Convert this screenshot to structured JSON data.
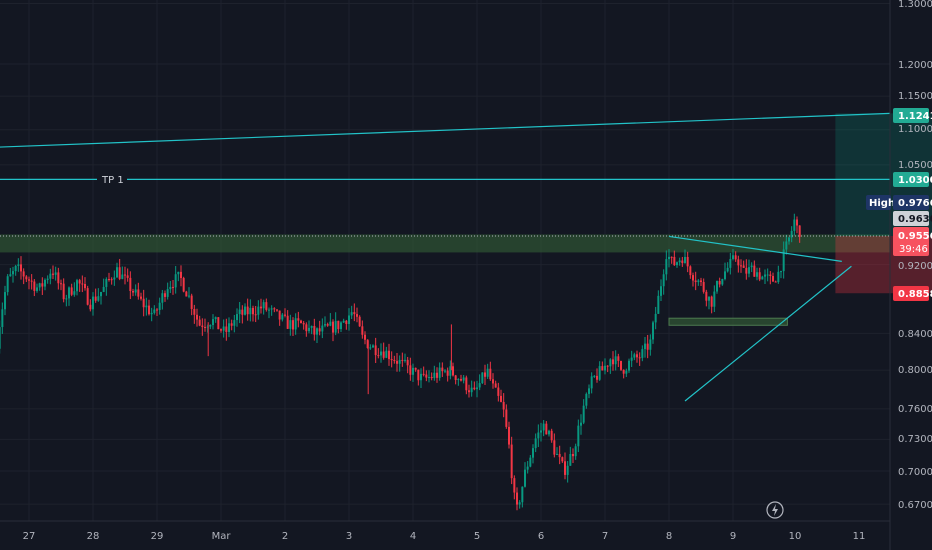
{
  "chart_data": {
    "type": "candlestick",
    "y_scale": "log",
    "ylim": [
      0.655,
      1.305
    ],
    "x_ticks": [
      "27",
      "28",
      "29",
      "Mar",
      "2",
      "3",
      "4",
      "5",
      "6",
      "7",
      "8",
      "9",
      "10",
      "11"
    ],
    "y_ticks": [
      "1.3000",
      "1.2000",
      "1.1500",
      "1.1000",
      "1.0500",
      "0.9200",
      "0.8400",
      "0.8000",
      "0.7600",
      "0.7300",
      "0.7000",
      "0.6700"
    ],
    "price_tags": {
      "target": "1.1241",
      "tp1": "1.0300",
      "high_label": "High",
      "high_value": "0.9766",
      "current_close": "0.9630",
      "last_price": "0.9556",
      "countdown": "39:46",
      "stop": "0.8858"
    },
    "annotations": {
      "tp1_label": "TP 1"
    },
    "price_path": [
      [
        26.5,
        0.81
      ],
      [
        26.6,
        0.86
      ],
      [
        26.7,
        0.9
      ],
      [
        26.85,
        0.915
      ],
      [
        27.0,
        0.905
      ],
      [
        27.2,
        0.89
      ],
      [
        27.4,
        0.915
      ],
      [
        27.6,
        0.88
      ],
      [
        27.8,
        0.9
      ],
      [
        28.0,
        0.875
      ],
      [
        28.2,
        0.89
      ],
      [
        28.4,
        0.915
      ],
      [
        28.6,
        0.895
      ],
      [
        28.8,
        0.875
      ],
      [
        29.0,
        0.86
      ],
      [
        29.2,
        0.895
      ],
      [
        29.4,
        0.905
      ],
      [
        29.55,
        0.88
      ],
      [
        29.7,
        0.85
      ],
      [
        29.9,
        0.855
      ],
      [
        30.1,
        0.84
      ],
      [
        30.3,
        0.86
      ],
      [
        30.5,
        0.865
      ],
      [
        30.7,
        0.87
      ],
      [
        30.9,
        0.86
      ],
      [
        31.1,
        0.85
      ],
      [
        31.3,
        0.85
      ],
      [
        31.5,
        0.84
      ],
      [
        31.7,
        0.845
      ],
      [
        31.9,
        0.85
      ],
      [
        32.1,
        0.865
      ],
      [
        32.25,
        0.835
      ],
      [
        32.4,
        0.825
      ],
      [
        32.6,
        0.82
      ],
      [
        32.8,
        0.81
      ],
      [
        33.0,
        0.8
      ],
      [
        33.2,
        0.79
      ],
      [
        33.4,
        0.795
      ],
      [
        33.6,
        0.8
      ],
      [
        33.8,
        0.79
      ],
      [
        34.0,
        0.775
      ],
      [
        34.2,
        0.8
      ],
      [
        34.3,
        0.78
      ],
      [
        34.45,
        0.76
      ],
      [
        34.55,
        0.72
      ],
      [
        34.65,
        0.66
      ],
      [
        34.8,
        0.7
      ],
      [
        34.95,
        0.73
      ],
      [
        35.1,
        0.745
      ],
      [
        35.25,
        0.72
      ],
      [
        35.4,
        0.7
      ],
      [
        35.55,
        0.72
      ],
      [
        35.7,
        0.76
      ],
      [
        35.85,
        0.79
      ],
      [
        36.0,
        0.8
      ],
      [
        36.15,
        0.815
      ],
      [
        36.3,
        0.8
      ],
      [
        36.45,
        0.81
      ],
      [
        36.6,
        0.815
      ],
      [
        36.75,
        0.83
      ],
      [
        36.9,
        0.89
      ],
      [
        37.0,
        0.935
      ],
      [
        37.1,
        0.92
      ],
      [
        37.25,
        0.93
      ],
      [
        37.4,
        0.91
      ],
      [
        37.55,
        0.895
      ],
      [
        37.7,
        0.875
      ],
      [
        37.85,
        0.905
      ],
      [
        38.0,
        0.92
      ],
      [
        38.1,
        0.93
      ],
      [
        38.2,
        0.91
      ],
      [
        38.35,
        0.915
      ],
      [
        38.5,
        0.905
      ],
      [
        38.65,
        0.9
      ],
      [
        38.75,
        0.91
      ],
      [
        38.85,
        0.935
      ],
      [
        38.95,
        0.96
      ],
      [
        39.0,
        0.975
      ],
      [
        39.05,
        0.963
      ]
    ],
    "key_levels": {
      "supply_zone": [
        0.935,
        0.9575
      ],
      "demand_box": [
        0.849,
        0.857
      ],
      "tp1": 1.03,
      "entry": 0.9556,
      "stop": 0.8858,
      "target": 1.1241
    },
    "colors": {
      "background": "#131722",
      "up": "#089981",
      "down": "#f23645",
      "trendline": "#22c3c8",
      "zone": "#2e5133",
      "target_tag": "#22ab94",
      "stop_tag": "#f23645",
      "high_tag": "#1e3566",
      "last_tag": "#f7525f",
      "current_tag": "#cfd2d8"
    }
  }
}
